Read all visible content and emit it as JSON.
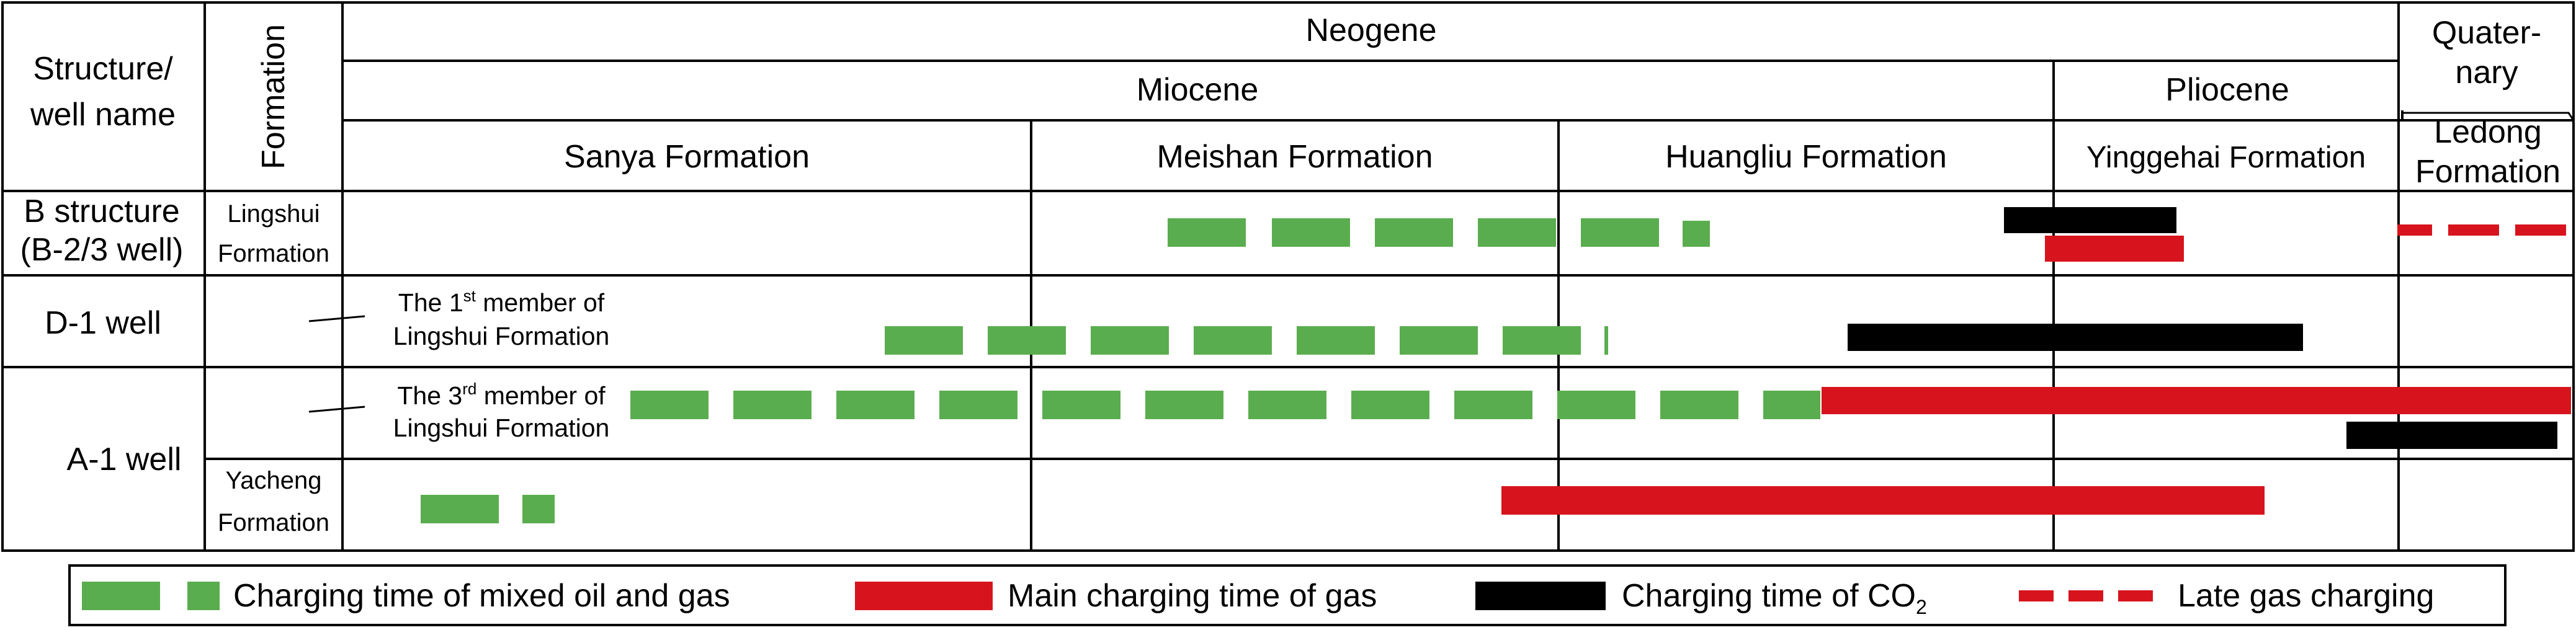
{
  "header": {
    "structure_label": [
      "Structure/",
      "well name"
    ],
    "formation_label": "Formation",
    "period_neogene": "Neogene",
    "period_quaternary": [
      "Quater-",
      "nary"
    ],
    "epoch_miocene": "Miocene",
    "epoch_pliocene": "Pliocene",
    "formations": {
      "sanya": "Sanya Formation",
      "meishan": "Meishan Formation",
      "huangliu": "Huangliu Formation",
      "yinggehai": "Yinggehai Formation",
      "ledong": [
        "Ledong",
        "Formation"
      ]
    }
  },
  "rows": {
    "b_structure": {
      "name": [
        "B structure",
        "(B-2/3 well)"
      ],
      "formation": [
        "Lingshui",
        "Formation"
      ]
    },
    "d1": {
      "name": "D-1 well",
      "member_prefix": "The 1",
      "member_sup": "st",
      "member_rest": " member of",
      "member_line2": "Lingshui Formation"
    },
    "a1": {
      "name": "A-1 well",
      "upper": {
        "member_prefix": "The 3",
        "member_sup": "rd",
        "member_rest": " member of",
        "member_line2": "Lingshui Formation"
      },
      "lower": {
        "formation": [
          "Yacheng",
          "Formation"
        ]
      }
    }
  },
  "legend": {
    "mixed": "Charging time of mixed oil and gas",
    "gas": "Main charging time of gas",
    "co2_prefix": "Charging time of CO",
    "co2_sub": "2",
    "late": "Late gas charging"
  },
  "colors": {
    "mixed": "#5aad4e",
    "gas": "#d7141d",
    "co2": "#000000",
    "late": "#d7141d",
    "border": "#000000"
  }
}
